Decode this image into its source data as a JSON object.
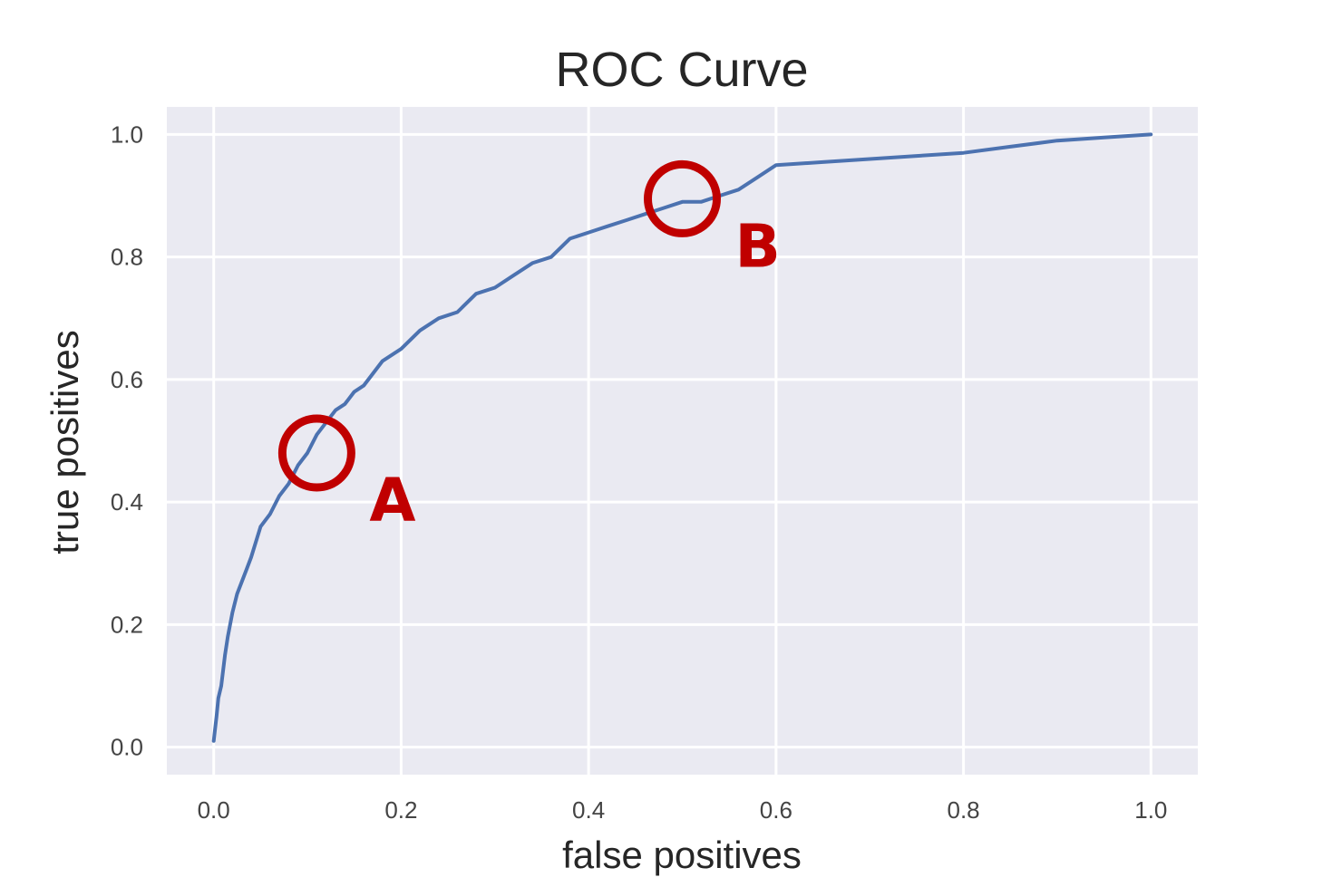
{
  "chart_data": {
    "type": "line",
    "title": "ROC Curve",
    "xlabel": "false positives",
    "ylabel": "true positives",
    "xlim": [
      -0.05,
      1.05
    ],
    "ylim": [
      -0.045,
      1.045
    ],
    "xticks": [
      0.0,
      0.2,
      0.4,
      0.6,
      0.8,
      1.0
    ],
    "yticks": [
      0.0,
      0.2,
      0.4,
      0.6,
      0.8,
      1.0
    ],
    "xtick_labels": [
      "0.0",
      "0.2",
      "0.4",
      "0.6",
      "0.8",
      "1.0"
    ],
    "ytick_labels": [
      "0.0",
      "0.2",
      "0.4",
      "0.6",
      "0.8",
      "1.0"
    ],
    "grid": true,
    "series": [
      {
        "color": "#4c72b0",
        "x": [
          0.0,
          0.003,
          0.005,
          0.008,
          0.012,
          0.015,
          0.02,
          0.025,
          0.03,
          0.035,
          0.04,
          0.05,
          0.06,
          0.07,
          0.08,
          0.09,
          0.1,
          0.11,
          0.12,
          0.13,
          0.14,
          0.15,
          0.16,
          0.17,
          0.18,
          0.2,
          0.22,
          0.24,
          0.26,
          0.28,
          0.3,
          0.32,
          0.34,
          0.36,
          0.38,
          0.4,
          0.42,
          0.44,
          0.46,
          0.48,
          0.5,
          0.52,
          0.54,
          0.56,
          0.58,
          0.6,
          0.65,
          0.7,
          0.75,
          0.8,
          0.85,
          0.9,
          0.95,
          1.0
        ],
        "y": [
          0.01,
          0.05,
          0.08,
          0.1,
          0.15,
          0.18,
          0.22,
          0.25,
          0.27,
          0.29,
          0.31,
          0.36,
          0.38,
          0.41,
          0.43,
          0.46,
          0.48,
          0.51,
          0.53,
          0.55,
          0.56,
          0.58,
          0.59,
          0.61,
          0.63,
          0.65,
          0.68,
          0.7,
          0.71,
          0.74,
          0.75,
          0.77,
          0.79,
          0.8,
          0.83,
          0.84,
          0.85,
          0.86,
          0.87,
          0.88,
          0.89,
          0.89,
          0.9,
          0.91,
          0.93,
          0.95,
          0.955,
          0.96,
          0.965,
          0.97,
          0.98,
          0.99,
          0.995,
          1.0
        ]
      }
    ],
    "annotations": [
      {
        "label": "A",
        "x": 0.11,
        "y": 0.48,
        "color": "#c00000"
      },
      {
        "label": "B",
        "x": 0.5,
        "y": 0.895,
        "color": "#c00000"
      }
    ],
    "style": {
      "background": "#eaeaf2",
      "gridcolor": "#ffffff"
    }
  }
}
